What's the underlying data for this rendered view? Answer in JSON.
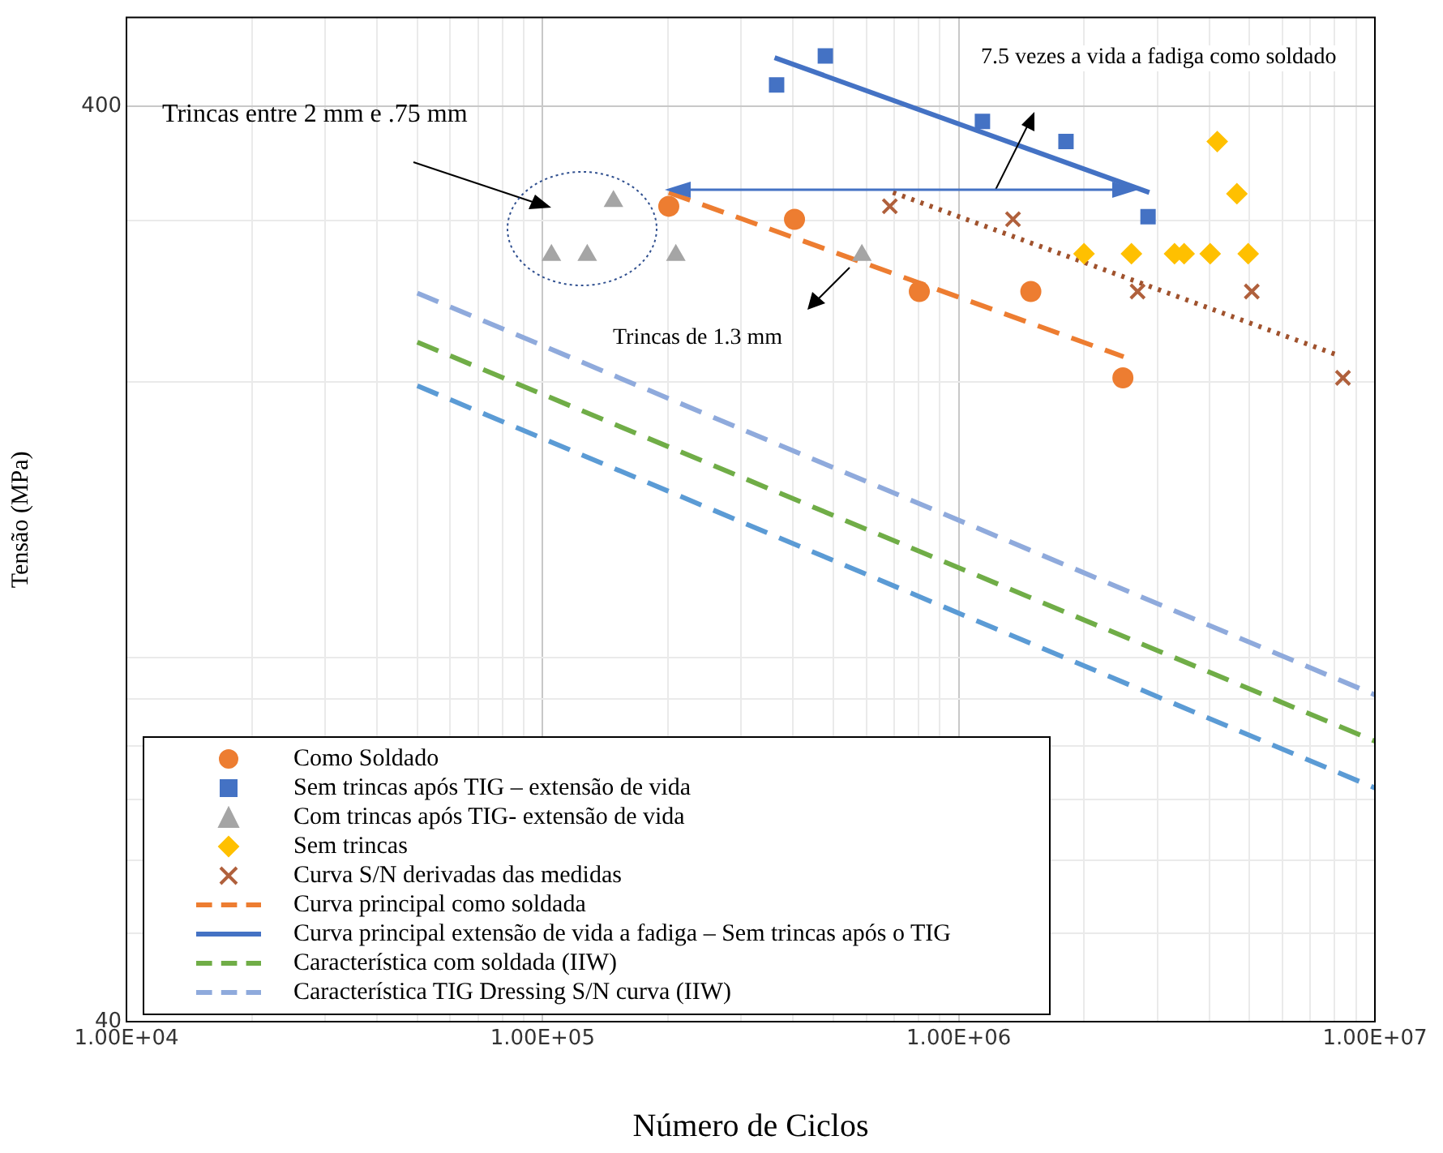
{
  "chart_data": {
    "type": "scatter",
    "xlabel": "Número de Ciclos",
    "ylabel": "Tensão (MPa)",
    "annotations": [
      "Trincas entre 2 mm e .75 mm",
      "Trincas de 1.3 mm",
      "7.5 vezes a vida a fadiga como soldado"
    ],
    "log": "xy",
    "grid": true,
    "legend": "bottom left",
    "xlim": [
      10000,
      10000000
    ],
    "ylim": [
      40,
      500
    ],
    "xticks": [
      {
        "value": 10000,
        "label": "1.00E+04"
      },
      {
        "value": 20000,
        "label": null
      },
      {
        "value": 30000,
        "label": null
      },
      {
        "value": 40000,
        "label": null
      },
      {
        "value": 50000,
        "label": null
      },
      {
        "value": 60000,
        "label": null
      },
      {
        "value": 70000,
        "label": null
      },
      {
        "value": 80000,
        "label": null
      },
      {
        "value": 90000,
        "label": null
      },
      {
        "value": 100000,
        "label": "1.00E+05"
      },
      {
        "value": 200000,
        "label": null
      },
      {
        "value": 300000,
        "label": null
      },
      {
        "value": 400000,
        "label": null
      },
      {
        "value": 500000,
        "label": null
      },
      {
        "value": 600000,
        "label": null
      },
      {
        "value": 700000,
        "label": null
      },
      {
        "value": 800000,
        "label": null
      },
      {
        "value": 900000,
        "label": null
      },
      {
        "value": 1000000,
        "label": "1.00E+06"
      },
      {
        "value": 2000000,
        "label": null
      },
      {
        "value": 3000000,
        "label": null
      },
      {
        "value": 4000000,
        "label": null
      },
      {
        "value": 5000000,
        "label": null
      },
      {
        "value": 6000000,
        "label": null
      },
      {
        "value": 7000000,
        "label": null
      },
      {
        "value": 8000000,
        "label": null
      },
      {
        "value": 9000000,
        "label": null
      },
      {
        "value": 10000000,
        "label": "1.00E+07"
      }
    ],
    "yticks": [
      40,
      {
        "value": 50,
        "label": null
      },
      {
        "value": 60,
        "label": null
      },
      {
        "value": 70,
        "label": null
      },
      {
        "value": 80,
        "label": null
      },
      {
        "value": 90,
        "label": null
      },
      {
        "value": 100,
        "label": null
      },
      {
        "value": 200,
        "label": null
      },
      {
        "value": 300,
        "label": null
      },
      400
    ],
    "series": [
      {
        "name": "Como Soldado",
        "marker": "circle",
        "color": "#ed7d31",
        "x": [
          201000,
          403000,
          804000,
          1490000,
          2480000
        ],
        "values": [
          311,
          301,
          251,
          251,
          202
        ]
      },
      {
        "name": "Sem trincas após TIG – extensão de vida",
        "marker": "square",
        "color": "#4472c4",
        "x": [
          365000,
          478000,
          1140000,
          1810000,
          2850000
        ],
        "values": [
          422,
          454,
          385,
          366,
          303
        ]
      },
      {
        "name": "Com trincas após TIG- extensão de vida",
        "marker": "triangle",
        "color": "#a5a5a5",
        "x": [
          105000,
          128000,
          148000,
          209000,
          585000
        ],
        "values": [
          275,
          275,
          315,
          275,
          275
        ]
      },
      {
        "name": "Sem trincas",
        "marker": "diamond",
        "color": "#ffc000",
        "x": [
          2000000,
          2600000,
          3300000,
          3480000,
          4020000,
          4180000,
          4660000,
          4960000
        ],
        "values": [
          276,
          276,
          276,
          276,
          276,
          366,
          321,
          276
        ]
      },
      {
        "name": "Curva S/N derivadas das medidas",
        "marker": "cross",
        "color": "#b0603c",
        "x": [
          683000,
          1350000,
          2690000,
          5060000,
          8380000
        ],
        "values": [
          311,
          301,
          251,
          251,
          202
        ]
      },
      {
        "name": "Curva principal como soldada",
        "type": "line",
        "marker": "none",
        "line_style": "dashed",
        "color": "#ed7d31",
        "x": [
          201000,
          2490000
        ],
        "values": [
          322,
          213
        ]
      },
      {
        "name": "Curva principal extensão de vida a fadiga – Sem trincas após o TIG",
        "type": "line",
        "marker": "none",
        "line_style": "solid",
        "color": "#4472c4",
        "x": [
          361000,
          2870000
        ],
        "values": [
          452,
          322
        ]
      },
      {
        "type": "line",
        "marker": "none",
        "line_style": "dotted",
        "color": "#a0522d",
        "x": [
          695000,
          8110000
        ],
        "values": [
          322,
          214
        ]
      },
      {
        "type": "line",
        "marker": "none",
        "line_style": "dashed",
        "color": "#5b9bd5",
        "x": [
          50000,
          10000000
        ],
        "values": [
          198,
          72
        ]
      },
      {
        "name": "Característica com soldada (IIW)",
        "type": "line",
        "marker": "none",
        "line_style": "dashed",
        "color": "#70ad47",
        "x": [
          50000,
          10000000
        ],
        "values": [
          221,
          81
        ]
      },
      {
        "name": "Característica TIG Dressing S/N curva (IIW)",
        "type": "line",
        "marker": "none",
        "line_style": "dashed",
        "color": "#8faadc",
        "x": [
          50000,
          10000000
        ],
        "values": [
          250,
          91
        ]
      }
    ]
  }
}
